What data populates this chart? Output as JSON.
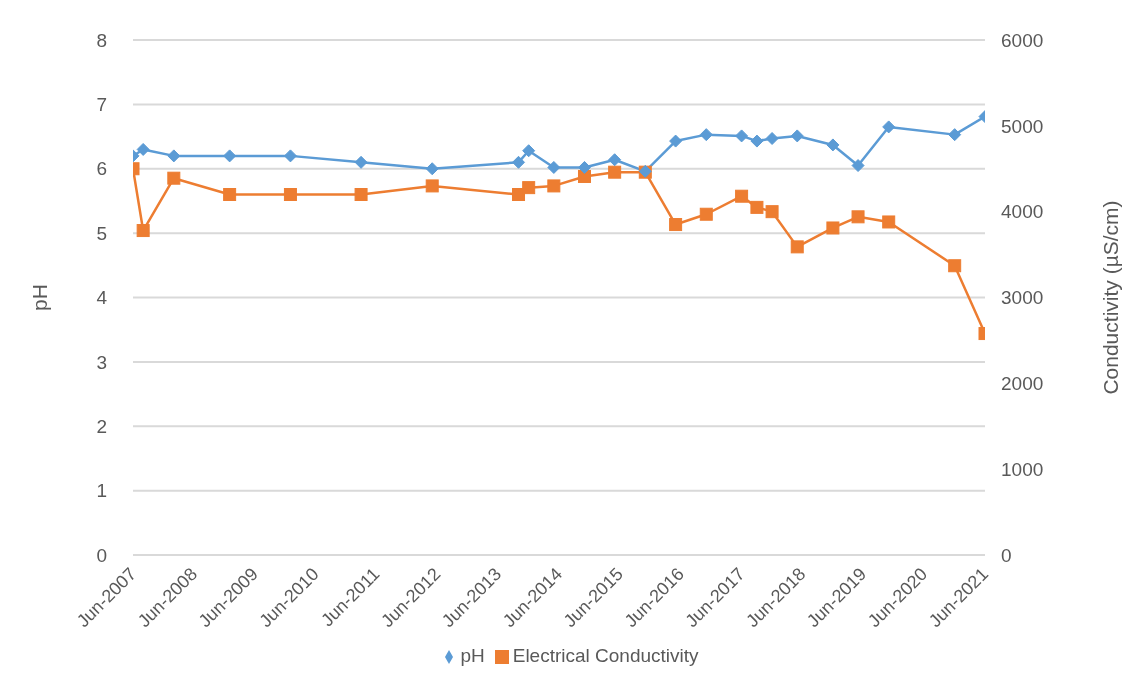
{
  "chart_data": {
    "type": "line",
    "ylabel": "pH",
    "y2label": "Conductivity (µS/cm)",
    "x": [
      "2007-06",
      "2007-08",
      "2008-02",
      "2009-01",
      "2010-01",
      "2011-03",
      "2012-05",
      "2013-10",
      "2013-12",
      "2014-05",
      "2014-11",
      "2015-05",
      "2015-11",
      "2016-05",
      "2016-11",
      "2017-06",
      "2017-09",
      "2017-12",
      "2018-05",
      "2018-12",
      "2019-05",
      "2019-11",
      "2020-12",
      "2021-06"
    ],
    "series": [
      {
        "name": "pH",
        "color": "#5b9bd5",
        "marker": "diamond",
        "values": [
          6.2,
          6.3,
          6.2,
          6.2,
          6.2,
          6.1,
          6.0,
          6.1,
          6.28,
          6.02,
          6.02,
          6.14,
          5.96,
          6.43,
          6.53,
          6.51,
          6.43,
          6.47,
          6.51,
          6.37,
          6.05,
          6.65,
          6.53,
          6.81
        ]
      },
      {
        "name": "Electrical Conductivity",
        "color": "#ed7d31",
        "marker": "square",
        "axis": "y2",
        "values": [
          4500,
          3780,
          4390,
          4200,
          4200,
          4200,
          4300,
          4200,
          4280,
          4300,
          4410,
          4460,
          4460,
          3850,
          3970,
          4180,
          4050,
          4000,
          3590,
          3810,
          3940,
          3880,
          3370,
          2580
        ]
      }
    ],
    "xlim": [
      "2007-06",
      "2021-06"
    ],
    "xticks": [
      {
        "value": "2007-06",
        "label": "Jun-2007"
      },
      {
        "value": "2008-06",
        "label": "Jun-2008"
      },
      {
        "value": "2009-06",
        "label": "Jun-2009"
      },
      {
        "value": "2010-06",
        "label": "Jun-2010"
      },
      {
        "value": "2011-06",
        "label": "Jun-2011"
      },
      {
        "value": "2012-06",
        "label": "Jun-2012"
      },
      {
        "value": "2013-06",
        "label": "Jun-2013"
      },
      {
        "value": "2014-06",
        "label": "Jun-2014"
      },
      {
        "value": "2015-06",
        "label": "Jun-2015"
      },
      {
        "value": "2016-06",
        "label": "Jun-2016"
      },
      {
        "value": "2017-06",
        "label": "Jun-2017"
      },
      {
        "value": "2018-06",
        "label": "Jun-2018"
      },
      {
        "value": "2019-06",
        "label": "Jun-2019"
      },
      {
        "value": "2020-06",
        "label": "Jun-2020"
      },
      {
        "value": "2021-06",
        "label": "Jun-2021"
      }
    ],
    "ylim": [
      0,
      8
    ],
    "yticks": [
      0,
      1,
      2,
      3,
      4,
      5,
      6,
      7,
      8
    ],
    "y2lim": [
      0,
      6000
    ],
    "y2ticks": [
      0,
      1000,
      2000,
      3000,
      4000,
      5000,
      6000
    ],
    "grid": "y",
    "legend": "bottom",
    "line_style": "solid"
  }
}
